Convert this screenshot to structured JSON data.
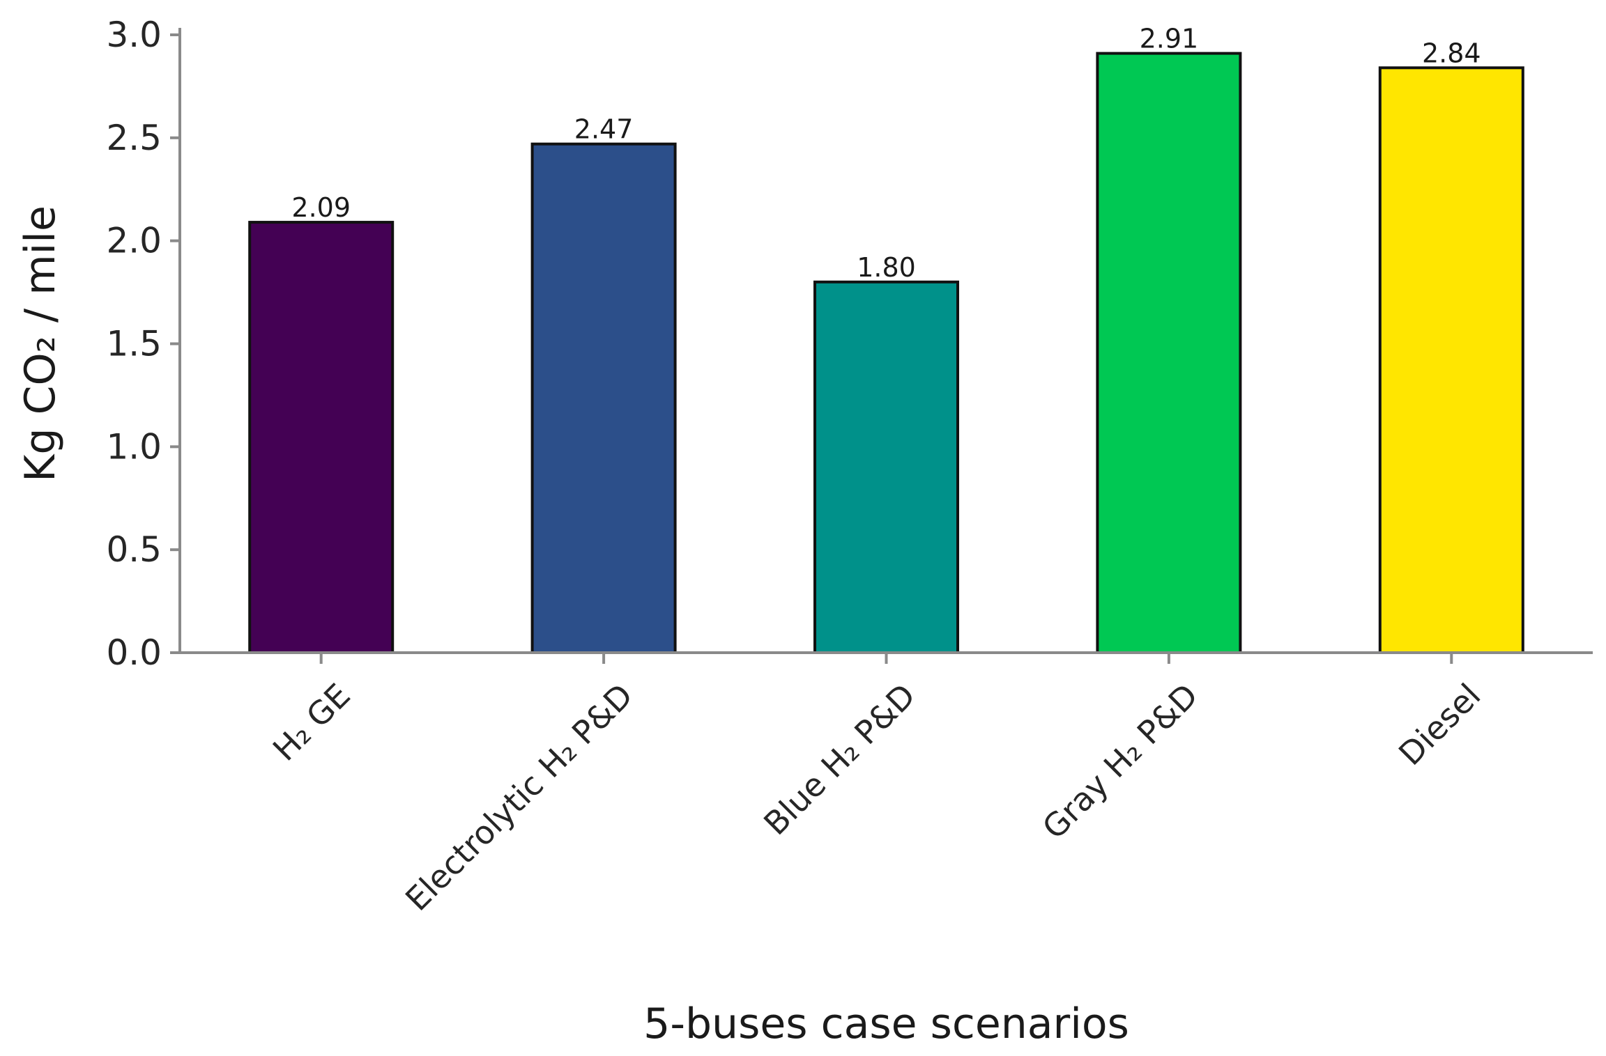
{
  "chart_data": {
    "type": "bar",
    "categories": [
      "H₂ GE",
      "Electrolytic H₂ P&D",
      "Blue H₂ P&D",
      "Gray H₂ P&D",
      "Diesel"
    ],
    "values": [
      2.09,
      2.47,
      1.8,
      2.91,
      2.84
    ],
    "value_labels": [
      "2.09",
      "2.47",
      "1.80",
      "2.91",
      "2.84"
    ],
    "colors": [
      "#440154",
      "#2c4f8a",
      "#00918a",
      "#00c853",
      "#ffe600"
    ],
    "xlabel": "5-buses case scenarios",
    "ylabel": "Kg CO₂ / mile",
    "ylim": [
      0,
      3.0
    ],
    "yticks": [
      0.0,
      0.5,
      1.0,
      1.5,
      2.0,
      2.5,
      3.0
    ],
    "ytick_labels": [
      "0.0",
      "0.5",
      "1.0",
      "1.5",
      "2.0",
      "2.5",
      "3.0"
    ],
    "grid": false,
    "legend": "none"
  }
}
